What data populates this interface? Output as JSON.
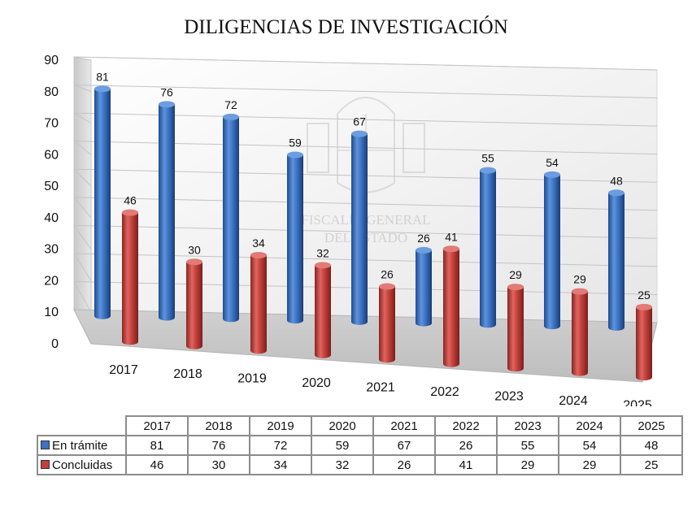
{
  "chart_data": {
    "type": "bar",
    "title": "DILIGENCIAS DE INVESTIGACIÓN",
    "categories": [
      "2017",
      "2018",
      "2019",
      "2020",
      "2021",
      "2022",
      "2023",
      "2024",
      "2025"
    ],
    "series": [
      {
        "name": "En trámite",
        "color": "#3f72c0",
        "values": [
          81,
          76,
          72,
          59,
          67,
          26,
          55,
          54,
          48
        ]
      },
      {
        "name": "Concluidas",
        "color": "#c0403c",
        "values": [
          46,
          30,
          34,
          32,
          26,
          41,
          29,
          29,
          25
        ]
      }
    ],
    "y_ticks": [
      "0",
      "10",
      "20",
      "30",
      "40",
      "50",
      "60",
      "70",
      "80",
      "90"
    ],
    "ylim": [
      0,
      90
    ],
    "grid": true,
    "style": "3d-cylinder",
    "legend": "data-table-below"
  },
  "watermark": {
    "line1": "FISCALÍA GENERAL",
    "line2": "DEL ESTADO"
  }
}
